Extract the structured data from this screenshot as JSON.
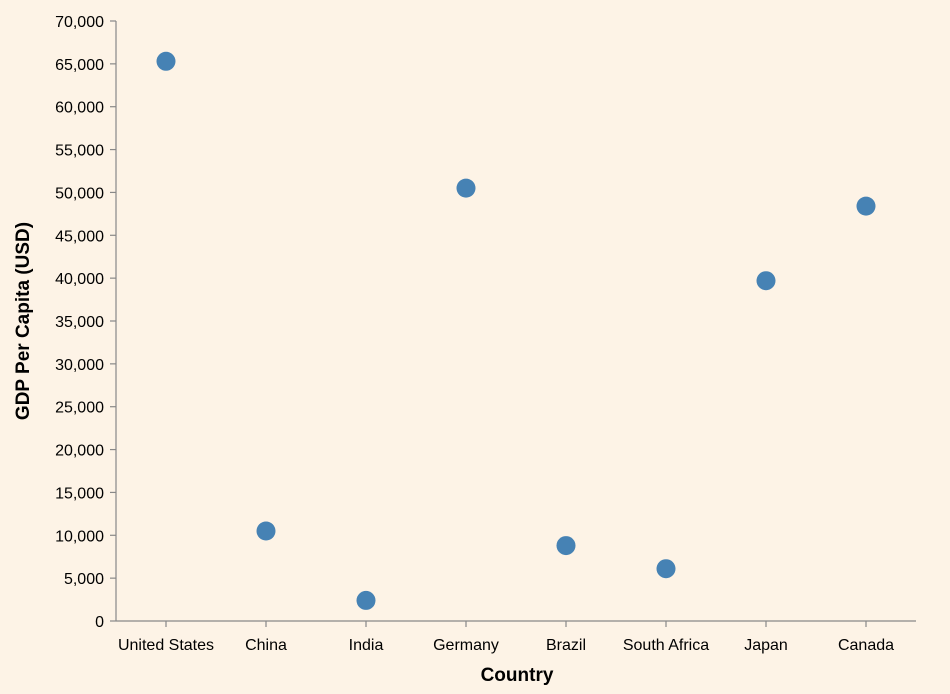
{
  "chart_data": {
    "type": "scatter",
    "title": "",
    "xlabel": "Country",
    "ylabel": "GDP Per Capita (USD)",
    "categories": [
      "United States",
      "China",
      "India",
      "Germany",
      "Brazil",
      "South Africa",
      "Japan",
      "Canada"
    ],
    "values": [
      65300,
      10500,
      2400,
      50500,
      8800,
      6100,
      39700,
      48400
    ],
    "ylim": [
      0,
      70000
    ],
    "yticks": [
      0,
      5000,
      10000,
      15000,
      20000,
      25000,
      30000,
      35000,
      40000,
      45000,
      50000,
      55000,
      60000,
      65000,
      70000
    ],
    "ytick_labels": [
      "0",
      "5,000",
      "10,000",
      "15,000",
      "20,000",
      "25,000",
      "30,000",
      "35,000",
      "40,000",
      "45,000",
      "50,000",
      "55,000",
      "60,000",
      "65,000",
      "70,000"
    ],
    "grid": false,
    "point_color": "#4682b4"
  }
}
